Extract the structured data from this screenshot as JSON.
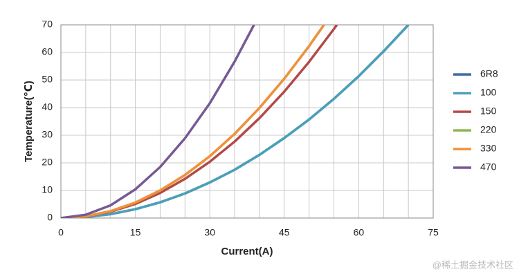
{
  "chart_data": {
    "type": "line",
    "x_label": "Current(A)",
    "y_label": "Temperature(℃)",
    "xlim": [
      0,
      75
    ],
    "xticks": [
      0,
      15,
      30,
      45,
      60,
      75
    ],
    "xgrid": [
      0,
      5,
      10,
      15,
      20,
      25,
      30,
      35,
      40,
      45,
      50,
      55,
      60,
      65,
      70,
      75
    ],
    "ylim": [
      0,
      70
    ],
    "yticks": [
      0,
      10,
      20,
      30,
      40,
      50,
      60,
      70
    ],
    "grid": true,
    "legend": "right",
    "watermark": "@稀土掘金技术社区",
    "series": [
      {
        "name": "6R8",
        "color": "#3f6c9e",
        "x": [
          0,
          5,
          10,
          15,
          20,
          25,
          30,
          35,
          40,
          45,
          50,
          55,
          60,
          65,
          70
        ],
        "values": [
          0,
          0.36,
          1.4,
          3.2,
          5.7,
          8.9,
          12.9,
          17.5,
          22.9,
          29,
          35.7,
          43.2,
          51.4,
          60.4,
          70
        ]
      },
      {
        "name": "100",
        "color": "#4aa0b8",
        "x": [
          0,
          5,
          10,
          15,
          20,
          25,
          30,
          35,
          40,
          45,
          50,
          55,
          60,
          65,
          70
        ],
        "values": [
          0,
          0.36,
          1.4,
          3.2,
          5.7,
          8.9,
          12.9,
          17.5,
          22.9,
          29,
          35.7,
          43.2,
          51.4,
          60.4,
          70
        ]
      },
      {
        "name": "150",
        "color": "#b24a48",
        "x": [
          0,
          5,
          10,
          15,
          20,
          25,
          30,
          35,
          40,
          45,
          50,
          55,
          55.6
        ],
        "values": [
          0,
          0.57,
          2.3,
          5.1,
          9.1,
          14.2,
          20.4,
          27.7,
          36.2,
          45.8,
          56.6,
          68.5,
          70
        ]
      },
      {
        "name": "220",
        "color": "#93b554",
        "x": [
          0,
          5,
          10,
          15,
          20,
          25,
          30,
          35,
          40,
          45,
          50,
          53
        ],
        "values": [
          0,
          0.62,
          2.5,
          5.6,
          10,
          15.6,
          22.4,
          30.5,
          39.9,
          50.5,
          62.3,
          70
        ]
      },
      {
        "name": "330",
        "color": "#f0913a",
        "x": [
          0,
          5,
          10,
          15,
          20,
          25,
          30,
          35,
          40,
          45,
          50,
          53
        ],
        "values": [
          0,
          0.62,
          2.5,
          5.6,
          10,
          15.6,
          22.4,
          30.5,
          39.9,
          50.5,
          62.3,
          70
        ]
      },
      {
        "name": "470",
        "color": "#755a94",
        "x": [
          0,
          5,
          10,
          15,
          20,
          25,
          30,
          35,
          38.9
        ],
        "values": [
          0,
          1.2,
          4.6,
          10.4,
          18.5,
          28.9,
          41.6,
          56.7,
          70
        ]
      }
    ]
  }
}
